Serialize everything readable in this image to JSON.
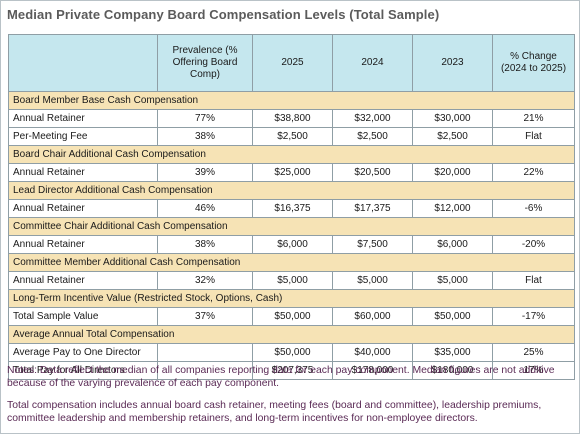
{
  "title": "Median Private Company Board Compensation Levels (Total Sample)",
  "headers": {
    "blank": "",
    "prevalence": "Prevalence (% Offering Board Comp)",
    "y2025": "2025",
    "y2024": "2024",
    "y2023": "2023",
    "change": "% Change (2024 to 2025)"
  },
  "sections": [
    {
      "title": "Board Member Base Cash Compensation",
      "rows": [
        {
          "label": "Annual Retainer",
          "prev": "77%",
          "v2025": "$38,800",
          "v2024": "$32,000",
          "v2023": "$30,000",
          "change": "21%"
        },
        {
          "label": "Per-Meeting Fee",
          "prev": "38%",
          "v2025": "$2,500",
          "v2024": "$2,500",
          "v2023": "$2,500",
          "change": "Flat"
        }
      ]
    },
    {
      "title": "Board Chair Additional Cash Compensation",
      "rows": [
        {
          "label": "Annual Retainer",
          "prev": "39%",
          "v2025": "$25,000",
          "v2024": "$20,500",
          "v2023": "$20,000",
          "change": "22%"
        }
      ]
    },
    {
      "title": "Lead Director Additional Cash Compensation",
      "rows": [
        {
          "label": "Annual Retainer",
          "prev": "46%",
          "v2025": "$16,375",
          "v2024": "$17,375",
          "v2023": "$12,000",
          "change": "-6%"
        }
      ]
    },
    {
      "title": "Committee Chair Additional Cash Compensation",
      "rows": [
        {
          "label": "Annual Retainer",
          "prev": "38%",
          "v2025": "$6,000",
          "v2024": "$7,500",
          "v2023": "$6,000",
          "change": "-20%"
        }
      ]
    },
    {
      "title": "Committee Member Additional Cash Compensation",
      "rows": [
        {
          "label": "Annual Retainer",
          "prev": "32%",
          "v2025": "$5,000",
          "v2024": "$5,000",
          "v2023": "$5,000",
          "change": "Flat"
        }
      ]
    },
    {
      "title": "Long-Term Incentive Value (Restricted Stock, Options, Cash)",
      "rows": [
        {
          "label": "Total Sample Value",
          "prev": "37%",
          "v2025": "$50,000",
          "v2024": "$60,000",
          "v2023": "$50,000",
          "change": "-17%"
        }
      ]
    },
    {
      "title": "Average Annual Total Compensation",
      "rows": [
        {
          "label": "Average Pay to One Director",
          "prev": "",
          "v2025": "$50,000",
          "v2024": "$40,000",
          "v2023": "$35,000",
          "change": "25%"
        },
        {
          "label": "Total Pay for All Directors",
          "prev": "",
          "v2025": "$207,375",
          "v2024": "$178,000",
          "v2023": "$180,000",
          "change": "17%"
        }
      ]
    }
  ],
  "notes": [
    "Notes: Data reflect the median of all companies reporting data for each pay component. Median figures are not additive because of the varying prevalence of each pay component.",
    "Total compensation includes annual board cash retainer, meeting fees (board and committee), leadership premiums, committee leadership and membership retainers, and long-term incentives for non-employee directors."
  ],
  "colors": {
    "header_bg": "#c5e7ee",
    "section_bg": "#f6e3b5",
    "notes_text": "#5a2a55",
    "title_text": "#5b5b5b"
  }
}
